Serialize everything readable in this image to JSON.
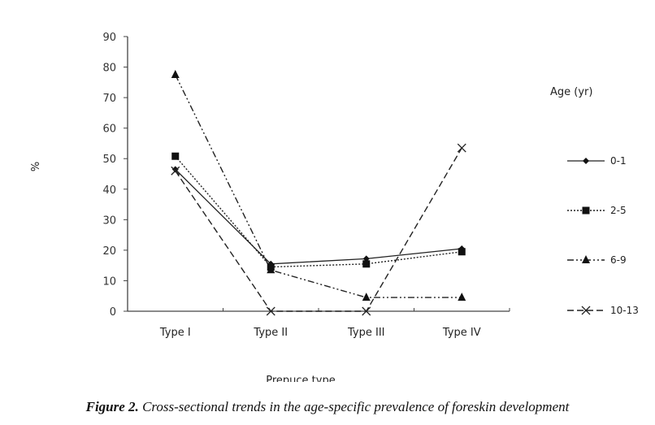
{
  "chart_data": {
    "type": "line",
    "title": "",
    "xlabel": "Prepuce type",
    "ylabel": "%",
    "categories": [
      "Type I",
      "Type II",
      "Type III",
      "Type IV"
    ],
    "ylim": [
      0,
      90
    ],
    "yticks": [
      0,
      10,
      20,
      30,
      40,
      50,
      60,
      70,
      80,
      90
    ],
    "grid": false,
    "legend_title": "Age (yr)",
    "legend_position": "right",
    "series": [
      {
        "name": "0-1",
        "marker": "diamond",
        "line_style": "solid",
        "values": [
          46.5,
          15.5,
          17.2,
          20.5
        ]
      },
      {
        "name": "2-5",
        "marker": "square",
        "line_style": "dotted",
        "values": [
          50.8,
          14.5,
          15.5,
          19.5
        ]
      },
      {
        "name": "6-9",
        "marker": "triangle",
        "line_style": "dash-dot-dot",
        "values": [
          77.5,
          13.5,
          4.5,
          4.5
        ]
      },
      {
        "name": "10-13",
        "marker": "x",
        "line_style": "dashed",
        "values": [
          46.0,
          0,
          0,
          53.5
        ]
      }
    ]
  },
  "caption": {
    "label": "Figure 2.",
    "text": " Cross-sectional trends in the age-specific prevalence of foreskin development"
  }
}
